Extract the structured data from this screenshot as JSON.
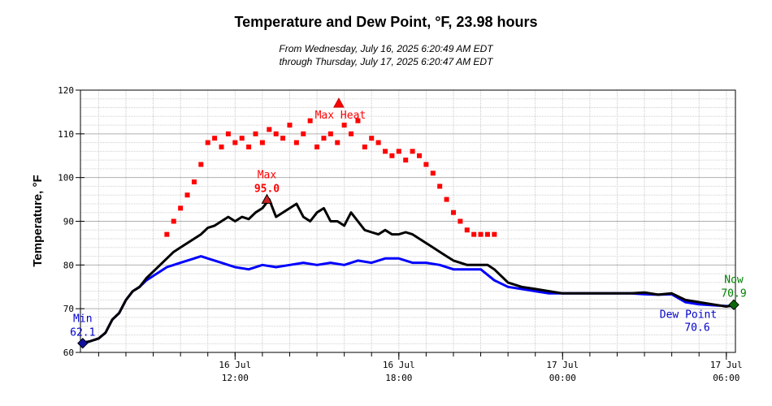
{
  "chart_data": {
    "type": "line",
    "title": "Temperature and Dew Point, °F, 23.98 hours",
    "subtitle_lines": [
      "From Wednesday, July 16, 2025 6:20:49 AM EDT",
      "through Thursday, July 17, 2025 6:20:47 AM EDT"
    ],
    "ylabel": "Temperature, °F",
    "xlim": [
      "2025-07-16 06:20",
      "2025-07-17 06:20"
    ],
    "ylim": [
      60,
      120
    ],
    "y_ticks": [
      60,
      70,
      80,
      90,
      100,
      110,
      120
    ],
    "x_ticks": [
      {
        "time": "2025-07-16 12:00",
        "line1": "16 Jul",
        "line2": "12:00"
      },
      {
        "time": "2025-07-16 18:00",
        "line1": "16 Jul",
        "line2": "18:00"
      },
      {
        "time": "2025-07-17 00:00",
        "line1": "17 Jul",
        "line2": "00:00"
      },
      {
        "time": "2025-07-17 06:00",
        "line1": "17 Jul",
        "line2": "06:00"
      }
    ],
    "grid": true,
    "series": [
      {
        "key": "heat_index",
        "color": "#ff0000",
        "x": [
          "2025-07-16 09:30",
          "2025-07-16 09:45",
          "2025-07-16 10:00",
          "2025-07-16 10:15",
          "2025-07-16 10:30",
          "2025-07-16 10:45",
          "2025-07-16 11:00",
          "2025-07-16 11:15",
          "2025-07-16 11:30",
          "2025-07-16 11:45",
          "2025-07-16 12:00",
          "2025-07-16 12:15",
          "2025-07-16 12:30",
          "2025-07-16 12:45",
          "2025-07-16 13:00",
          "2025-07-16 13:15",
          "2025-07-16 13:30",
          "2025-07-16 13:45",
          "2025-07-16 14:00",
          "2025-07-16 14:15",
          "2025-07-16 14:30",
          "2025-07-16 14:45",
          "2025-07-16 15:00",
          "2025-07-16 15:15",
          "2025-07-16 15:30",
          "2025-07-16 15:45",
          "2025-07-16 16:00",
          "2025-07-16 16:15",
          "2025-07-16 16:30",
          "2025-07-16 16:45",
          "2025-07-16 17:00",
          "2025-07-16 17:15",
          "2025-07-16 17:30",
          "2025-07-16 17:45",
          "2025-07-16 18:00",
          "2025-07-16 18:15",
          "2025-07-16 18:30",
          "2025-07-16 18:45",
          "2025-07-16 19:00",
          "2025-07-16 19:15",
          "2025-07-16 19:30",
          "2025-07-16 19:45",
          "2025-07-16 20:00",
          "2025-07-16 20:15",
          "2025-07-16 20:30",
          "2025-07-16 20:45",
          "2025-07-16 21:00",
          "2025-07-16 21:15",
          "2025-07-16 21:30"
        ],
        "y": [
          87,
          90,
          93,
          96,
          99,
          103,
          108,
          109,
          107,
          110,
          108,
          109,
          107,
          110,
          108,
          111,
          110,
          109,
          112,
          108,
          110,
          113,
          107,
          109,
          110,
          108,
          112,
          110,
          113,
          107,
          109,
          108,
          106,
          105,
          106,
          104,
          106,
          105,
          103,
          101,
          98,
          95,
          92,
          90,
          88,
          87,
          87,
          87,
          87
        ]
      },
      {
        "key": "temperature",
        "color": "#000000",
        "x": [
          "2025-07-16 06:20",
          "2025-07-16 06:40",
          "2025-07-16 07:00",
          "2025-07-16 07:15",
          "2025-07-16 07:30",
          "2025-07-16 07:45",
          "2025-07-16 08:00",
          "2025-07-16 08:15",
          "2025-07-16 08:30",
          "2025-07-16 08:45",
          "2025-07-16 09:00",
          "2025-07-16 09:15",
          "2025-07-16 09:30",
          "2025-07-16 09:45",
          "2025-07-16 10:00",
          "2025-07-16 10:15",
          "2025-07-16 10:30",
          "2025-07-16 10:45",
          "2025-07-16 11:00",
          "2025-07-16 11:15",
          "2025-07-16 11:30",
          "2025-07-16 11:45",
          "2025-07-16 12:00",
          "2025-07-16 12:15",
          "2025-07-16 12:30",
          "2025-07-16 12:45",
          "2025-07-16 13:00",
          "2025-07-16 13:15",
          "2025-07-16 13:30",
          "2025-07-16 13:45",
          "2025-07-16 14:00",
          "2025-07-16 14:15",
          "2025-07-16 14:30",
          "2025-07-16 14:45",
          "2025-07-16 15:00",
          "2025-07-16 15:15",
          "2025-07-16 15:30",
          "2025-07-16 15:45",
          "2025-07-16 16:00",
          "2025-07-16 16:15",
          "2025-07-16 16:30",
          "2025-07-16 16:45",
          "2025-07-16 17:00",
          "2025-07-16 17:15",
          "2025-07-16 17:30",
          "2025-07-16 17:45",
          "2025-07-16 18:00",
          "2025-07-16 18:15",
          "2025-07-16 18:30",
          "2025-07-16 18:45",
          "2025-07-16 19:00",
          "2025-07-16 19:15",
          "2025-07-16 19:30",
          "2025-07-16 19:45",
          "2025-07-16 20:00",
          "2025-07-16 20:15",
          "2025-07-16 20:30",
          "2025-07-16 20:45",
          "2025-07-16 21:00",
          "2025-07-16 21:15",
          "2025-07-16 21:30",
          "2025-07-16 22:00",
          "2025-07-16 22:30",
          "2025-07-16 23:00",
          "2025-07-16 23:30",
          "2025-07-17 00:00",
          "2025-07-17 00:30",
          "2025-07-17 01:00",
          "2025-07-17 01:30",
          "2025-07-17 02:00",
          "2025-07-17 02:30",
          "2025-07-17 03:00",
          "2025-07-17 03:30",
          "2025-07-17 04:00",
          "2025-07-17 04:30",
          "2025-07-17 05:00",
          "2025-07-17 05:30",
          "2025-07-17 06:00",
          "2025-07-17 06:20"
        ],
        "y": [
          62.1,
          62.5,
          63.2,
          64.5,
          67.5,
          69,
          72,
          74,
          75,
          77,
          78.5,
          80,
          81.5,
          83,
          84,
          85,
          86,
          87,
          88.5,
          89,
          90,
          91,
          90,
          91,
          90.5,
          92,
          93,
          95,
          91,
          92,
          93,
          94,
          91,
          90,
          92,
          93,
          90,
          90,
          89,
          92,
          90,
          88,
          87.5,
          87,
          88,
          87,
          87,
          87.5,
          87,
          86,
          85,
          84,
          83,
          82,
          81,
          80.5,
          80,
          80,
          80,
          80,
          79,
          76,
          75,
          74.5,
          74,
          73.5,
          73.5,
          73.5,
          73.5,
          73.5,
          73.5,
          73.7,
          73.2,
          73.5,
          72,
          71.5,
          71,
          70.5,
          70.9
        ]
      },
      {
        "key": "dew_point",
        "color": "#0000ff",
        "x": [
          "2025-07-16 06:20",
          "2025-07-16 06:40",
          "2025-07-16 07:00",
          "2025-07-16 07:15",
          "2025-07-16 07:30",
          "2025-07-16 07:45",
          "2025-07-16 08:00",
          "2025-07-16 08:15",
          "2025-07-16 08:30",
          "2025-07-16 08:45",
          "2025-07-16 09:00",
          "2025-07-16 09:15",
          "2025-07-16 09:30",
          "2025-07-16 09:45",
          "2025-07-16 10:00",
          "2025-07-16 10:15",
          "2025-07-16 10:30",
          "2025-07-16 10:45",
          "2025-07-16 11:00",
          "2025-07-16 11:15",
          "2025-07-16 11:30",
          "2025-07-16 11:45",
          "2025-07-16 12:00",
          "2025-07-16 12:30",
          "2025-07-16 13:00",
          "2025-07-16 13:30",
          "2025-07-16 14:00",
          "2025-07-16 14:30",
          "2025-07-16 15:00",
          "2025-07-16 15:30",
          "2025-07-16 16:00",
          "2025-07-16 16:30",
          "2025-07-16 17:00",
          "2025-07-16 17:30",
          "2025-07-16 18:00",
          "2025-07-16 18:30",
          "2025-07-16 19:00",
          "2025-07-16 19:30",
          "2025-07-16 20:00",
          "2025-07-16 20:30",
          "2025-07-16 21:00",
          "2025-07-16 21:30",
          "2025-07-16 22:00",
          "2025-07-16 22:30",
          "2025-07-16 23:00",
          "2025-07-16 23:30",
          "2025-07-17 00:00",
          "2025-07-17 00:30",
          "2025-07-17 01:00",
          "2025-07-17 01:30",
          "2025-07-17 02:00",
          "2025-07-17 02:30",
          "2025-07-17 03:00",
          "2025-07-17 03:30",
          "2025-07-17 04:00",
          "2025-07-17 04:30",
          "2025-07-17 05:00",
          "2025-07-17 05:30",
          "2025-07-17 06:00",
          "2025-07-17 06:20"
        ],
        "y": [
          62.1,
          62.5,
          63.2,
          64.5,
          67.5,
          69,
          72,
          74,
          75,
          76.5,
          77.5,
          78.5,
          79.5,
          80,
          80.5,
          81,
          81.5,
          82,
          81.5,
          81,
          80.5,
          80,
          79.5,
          79,
          80,
          79.5,
          80,
          80.5,
          80,
          80.5,
          80,
          81,
          80.5,
          81.5,
          81.5,
          80.5,
          80.5,
          80,
          79,
          79,
          79,
          76.5,
          75,
          74.5,
          74,
          73.5,
          73.5,
          73.5,
          73.5,
          73.5,
          73.5,
          73.5,
          73.3,
          73.2,
          73.3,
          71.5,
          71,
          70.8,
          70.6,
          70.6
        ]
      }
    ],
    "annotations": {
      "min": {
        "label": "Min",
        "value": "62.1",
        "time": "2025-07-16 06:25",
        "y": 62.1,
        "color": "#0000cc"
      },
      "max": {
        "label": "Max",
        "value": "95.0",
        "time": "2025-07-16 13:10",
        "y": 95.0,
        "color": "#ff0000"
      },
      "max_heat": {
        "label": "Max Heat",
        "time": "2025-07-16 15:48",
        "y": 117,
        "color": "#ff0000"
      },
      "now": {
        "label": "Now",
        "value": "70.9",
        "time": "2025-07-17 06:20",
        "y": 70.9,
        "color": "#008000"
      },
      "dew_point": {
        "label": "Dew Point",
        "value": "70.6",
        "color": "#0000cc"
      }
    }
  }
}
